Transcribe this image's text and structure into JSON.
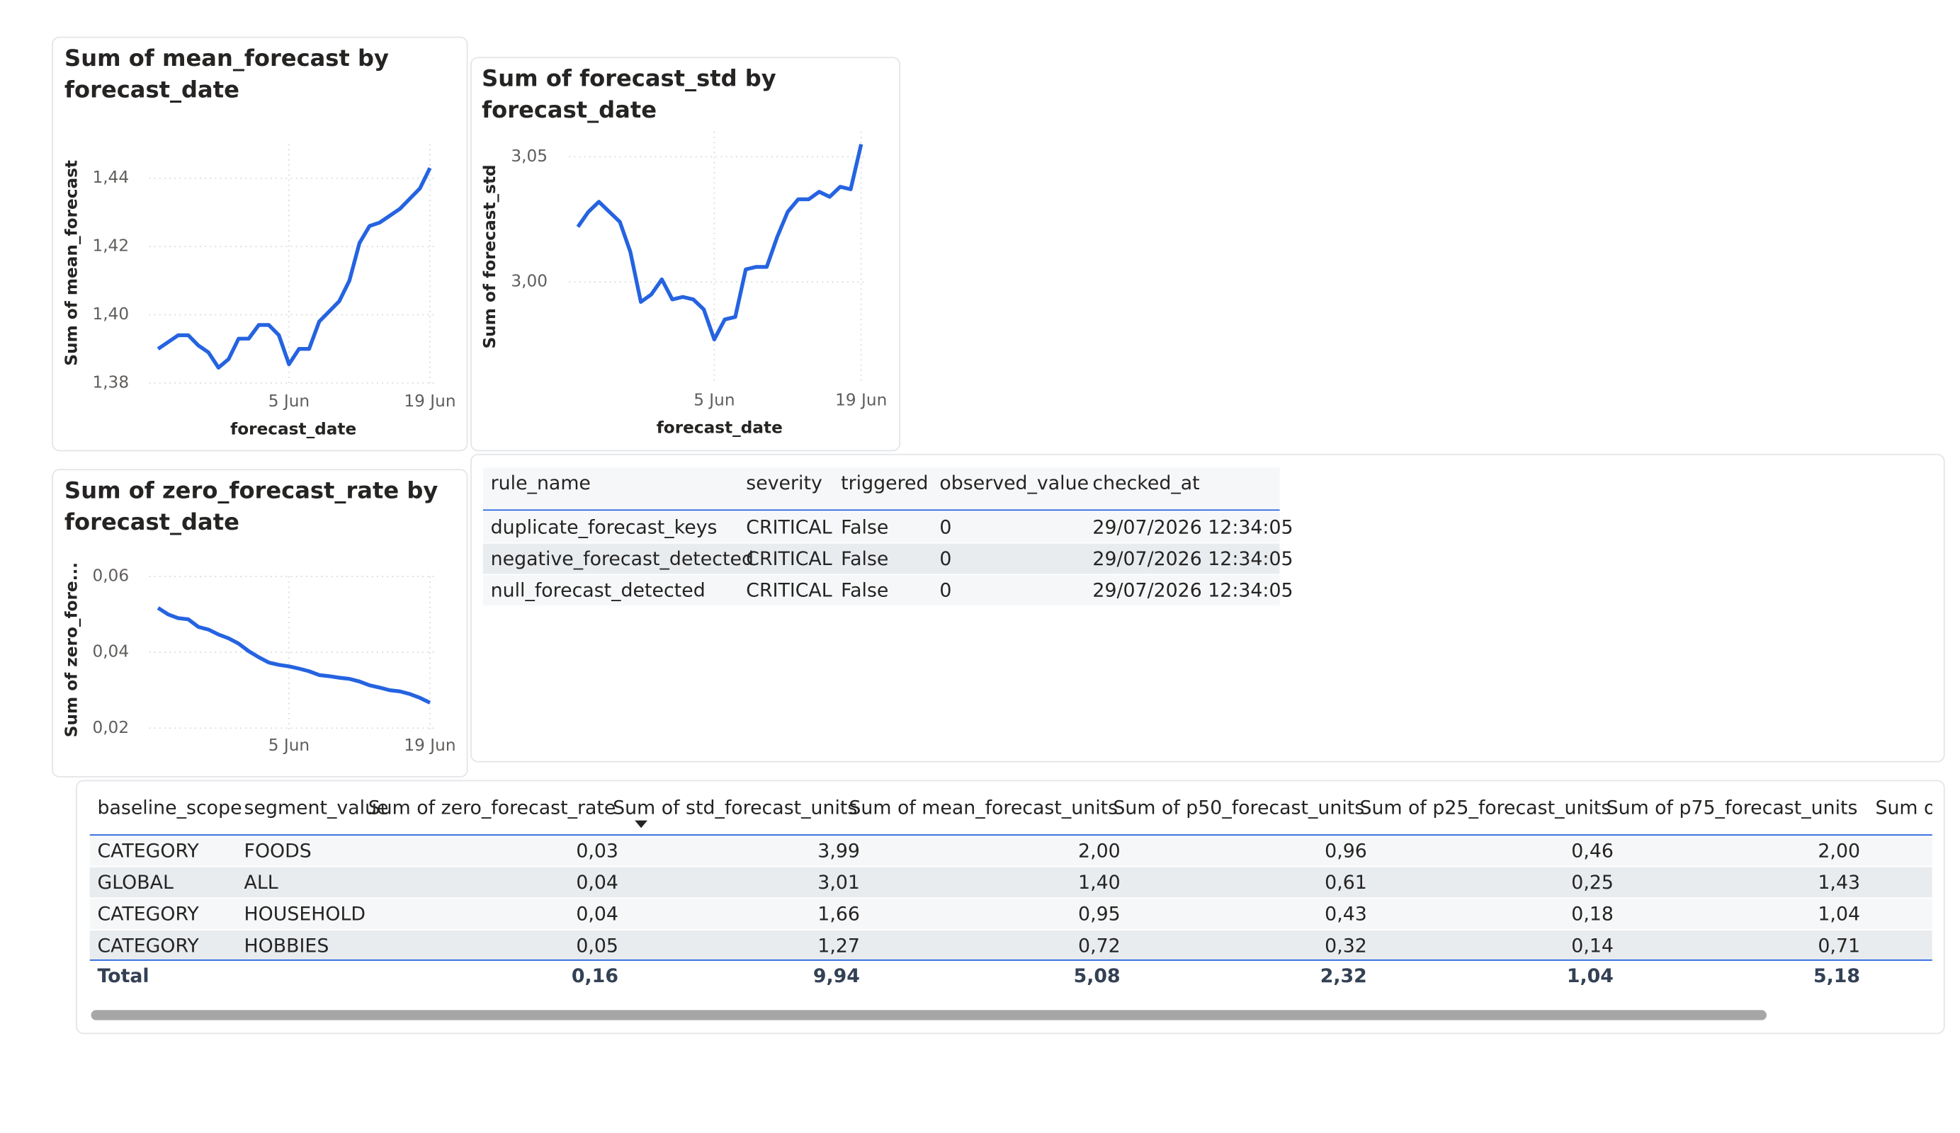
{
  "chart_data": [
    {
      "type": "line",
      "title": "Sum of mean_forecast by forecast_date",
      "x_label": "forecast_date",
      "y_label": "Sum of mean_forecast",
      "x": [
        "23 May",
        "24 May",
        "25 May",
        "26 May",
        "27 May",
        "28 May",
        "29 May",
        "30 May",
        "31 May",
        "1 Jun",
        "2 Jun",
        "3 Jun",
        "4 Jun",
        "5 Jun",
        "6 Jun",
        "7 Jun",
        "8 Jun",
        "9 Jun",
        "10 Jun",
        "11 Jun",
        "12 Jun",
        "13 Jun",
        "14 Jun",
        "15 Jun",
        "16 Jun",
        "17 Jun",
        "18 Jun",
        "19 Jun"
      ],
      "xticks": [
        "5 Jun",
        "19 Jun"
      ],
      "values": [
        1.39,
        1.392,
        1.394,
        1.394,
        1.391,
        1.389,
        1.3845,
        1.387,
        1.393,
        1.393,
        1.397,
        1.397,
        1.394,
        1.3855,
        1.39,
        1.39,
        1.398,
        1.401,
        1.404,
        1.41,
        1.421,
        1.426,
        1.427,
        1.429,
        1.431,
        1.434,
        1.437,
        1.443
      ],
      "color": "#2563e0",
      "ylim": [
        1.38,
        1.45
      ],
      "yticks": [
        {
          "value": 1.38,
          "label": "1,38"
        },
        {
          "value": 1.4,
          "label": "1,40"
        },
        {
          "value": 1.42,
          "label": "1,42"
        },
        {
          "value": 1.44,
          "label": "1,44"
        }
      ],
      "grid": true
    },
    {
      "type": "line",
      "title": "Sum of forecast_std by forecast_date",
      "x_label": "forecast_date",
      "y_label": "Sum of forecast_std",
      "x": [
        "23 May",
        "24 May",
        "25 May",
        "26 May",
        "27 May",
        "28 May",
        "29 May",
        "30 May",
        "31 May",
        "1 Jun",
        "2 Jun",
        "3 Jun",
        "4 Jun",
        "5 Jun",
        "6 Jun",
        "7 Jun",
        "8 Jun",
        "9 Jun",
        "10 Jun",
        "11 Jun",
        "12 Jun",
        "13 Jun",
        "14 Jun",
        "15 Jun",
        "16 Jun",
        "17 Jun",
        "18 Jun",
        "19 Jun"
      ],
      "xticks": [
        "5 Jun",
        "19 Jun"
      ],
      "values": [
        3.022,
        3.028,
        3.032,
        3.028,
        3.024,
        3.012,
        2.992,
        2.995,
        3.001,
        2.993,
        2.994,
        2.993,
        2.989,
        2.977,
        2.985,
        2.986,
        3.005,
        3.006,
        3.006,
        3.018,
        3.028,
        3.033,
        3.033,
        3.036,
        3.034,
        3.038,
        3.037,
        3.055
      ],
      "color": "#2563e0",
      "ylim": [
        2.96,
        3.06
      ],
      "yticks": [
        {
          "value": 3.0,
          "label": "3,00"
        },
        {
          "value": 3.05,
          "label": "3,05"
        }
      ],
      "grid": true
    },
    {
      "type": "line",
      "title": "Sum of zero_forecast_rate by forecast_date",
      "y_label": "Sum of zero_fore...",
      "x": [
        "23 May",
        "24 May",
        "25 May",
        "26 May",
        "27 May",
        "28 May",
        "29 May",
        "30 May",
        "31 May",
        "1 Jun",
        "2 Jun",
        "3 Jun",
        "4 Jun",
        "5 Jun",
        "6 Jun",
        "7 Jun",
        "8 Jun",
        "9 Jun",
        "10 Jun",
        "11 Jun",
        "12 Jun",
        "13 Jun",
        "14 Jun",
        "15 Jun",
        "16 Jun",
        "17 Jun",
        "18 Jun",
        "19 Jun"
      ],
      "xticks": [
        "5 Jun",
        "19 Jun"
      ],
      "values": [
        0.0517,
        0.05,
        0.049,
        0.0487,
        0.0467,
        0.046,
        0.0447,
        0.0437,
        0.0423,
        0.0403,
        0.0387,
        0.0373,
        0.0367,
        0.0363,
        0.0357,
        0.035,
        0.034,
        0.0337,
        0.0333,
        0.033,
        0.0323,
        0.0313,
        0.0307,
        0.03,
        0.0297,
        0.029,
        0.028,
        0.0267
      ],
      "color": "#2563e0",
      "ylim": [
        0.02,
        0.06
      ],
      "yticks": [
        {
          "value": 0.02,
          "label": "0,02"
        },
        {
          "value": 0.04,
          "label": "0,04"
        },
        {
          "value": 0.06,
          "label": "0,06"
        }
      ],
      "grid": true
    }
  ],
  "rules_table": {
    "columns": [
      "rule_name",
      "severity",
      "triggered",
      "observed_value",
      "checked_at"
    ],
    "rows": [
      [
        "duplicate_forecast_keys",
        "CRITICAL",
        "False",
        "0",
        "29/07/2026 12:34:05"
      ],
      [
        "negative_forecast_detected",
        "CRITICAL",
        "False",
        "0",
        "29/07/2026 12:34:05"
      ],
      [
        "null_forecast_detected",
        "CRITICAL",
        "False",
        "0",
        "29/07/2026 12:34:05"
      ]
    ]
  },
  "summary_table": {
    "columns": [
      "baseline_scope",
      "segment_value",
      "Sum of zero_forecast_rate",
      "Sum of std_forecast_units",
      "Sum of mean_forecast_units",
      "Sum of p50_forecast_units",
      "Sum of p25_forecast_units",
      "Sum of p75_forecast_units",
      "Sum o"
    ],
    "rows": [
      [
        "CATEGORY",
        "FOODS",
        "0,03",
        "3,99",
        "2,00",
        "0,96",
        "0,46",
        "2,00"
      ],
      [
        "GLOBAL",
        "ALL",
        "0,04",
        "3,01",
        "1,40",
        "0,61",
        "0,25",
        "1,43"
      ],
      [
        "CATEGORY",
        "HOUSEHOLD",
        "0,04",
        "1,66",
        "0,95",
        "0,43",
        "0,18",
        "1,04"
      ],
      [
        "CATEGORY",
        "HOBBIES",
        "0,05",
        "1,27",
        "0,72",
        "0,32",
        "0,14",
        "0,71"
      ]
    ],
    "total": {
      "label": "Total",
      "values": [
        "0,16",
        "9,94",
        "5,08",
        "2,32",
        "1,04",
        "5,18"
      ]
    }
  }
}
